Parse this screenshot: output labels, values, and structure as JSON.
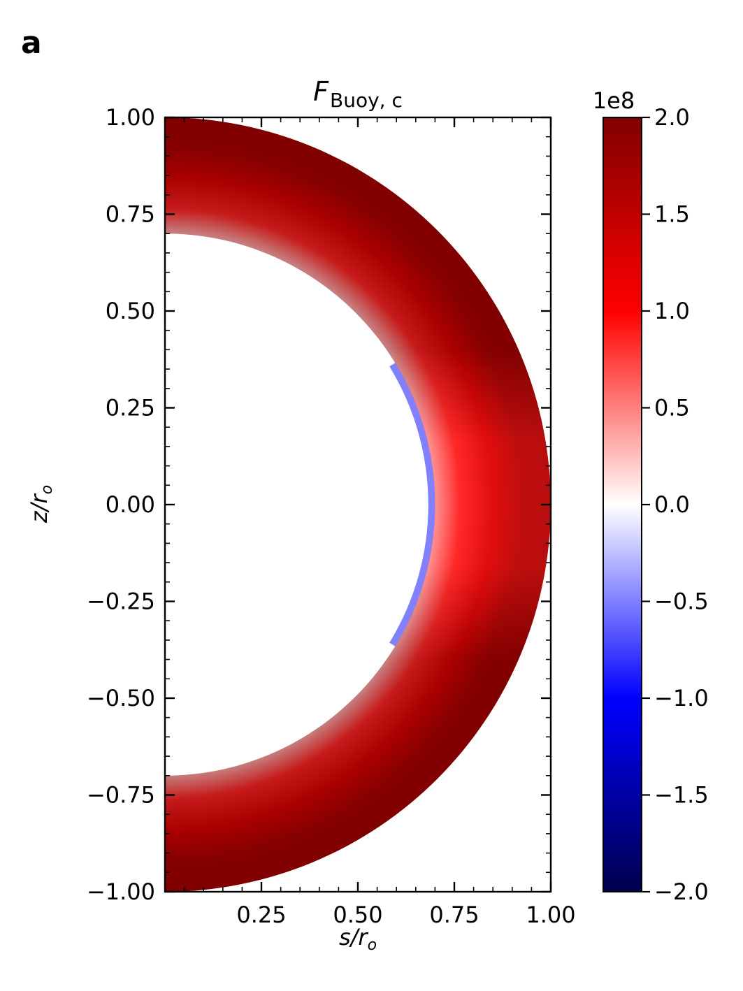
{
  "panel_label": "a",
  "chart_data": {
    "type": "heatmap",
    "title_main": "F",
    "title_sub": "Buoy, c",
    "xlabel_var": "s",
    "xlabel_den": "r",
    "xlabel_den_sub": "o",
    "ylabel_var": "z",
    "ylabel_den": "r",
    "ylabel_den_sub": "o",
    "xlim": [
      0.0,
      1.0
    ],
    "ylim": [
      -1.0,
      1.0
    ],
    "x_ticks": [
      0.25,
      0.5,
      0.75,
      1.0
    ],
    "x_tick_labels": [
      "0.25",
      "0.50",
      "0.75",
      "1.00"
    ],
    "y_ticks": [
      1.0,
      0.75,
      0.5,
      0.25,
      0.0,
      -0.25,
      -0.5,
      -0.75,
      -1.0
    ],
    "y_tick_labels": [
      "1.00",
      "0.75",
      "0.50",
      "0.25",
      "0.00",
      "−0.25",
      "−0.50",
      "−0.75",
      "−1.00"
    ],
    "domain": {
      "shape": "meridional half-shell",
      "inner_radius": 0.7,
      "outer_radius": 1.0
    },
    "colormap": "seismic",
    "colorbar": {
      "offset_label": "1e8",
      "vmin": -2.0,
      "vmax": 2.0,
      "ticks": [
        2.0,
        1.5,
        1.0,
        0.5,
        0.0,
        -0.5,
        -1.0,
        -1.5,
        -2.0
      ],
      "tick_labels": [
        "2.0",
        "1.5",
        "1.0",
        "0.5",
        "0.0",
        "−0.5",
        "−1.0",
        "−1.5",
        "−2.0"
      ],
      "colors": [
        "#00004c",
        "#0000ff",
        "#ffffff",
        "#ff0000",
        "#800000"
      ]
    },
    "grid": false,
    "legend": "none"
  }
}
